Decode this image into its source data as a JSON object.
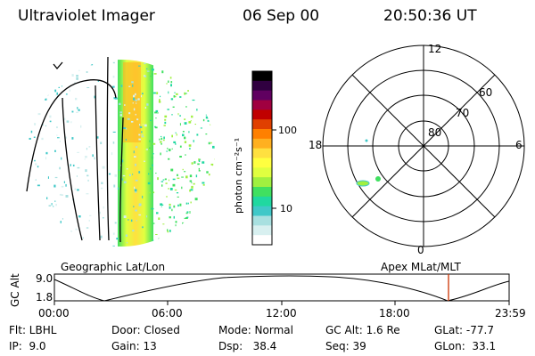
{
  "header": {
    "instrument": "Ultraviolet Imager",
    "date": "06 Sep 00",
    "time": "20:50:36 UT"
  },
  "colorbar": {
    "unit_label": "photon cm⁻²s⁻¹",
    "ticks": [
      "100",
      "10"
    ],
    "colors": [
      "#ffffff",
      "#d8f0f0",
      "#a8e0e0",
      "#40c8c8",
      "#20d8a0",
      "#40e060",
      "#a0f040",
      "#e0ff40",
      "#ffff40",
      "#ffe040",
      "#ffb020",
      "#ff8000",
      "#e04000",
      "#c00000",
      "#a00040",
      "#600060",
      "#300040",
      "#000000"
    ]
  },
  "polar_plot": {
    "mlt_labels": [
      "12",
      "18",
      "6",
      "0"
    ],
    "lat_labels": [
      "60",
      "70",
      "80"
    ]
  },
  "orbit": {
    "left_title": "Geographic Lat/Lon",
    "right_title": "Apex MLat/MLT",
    "y_axis_label": "GC Alt",
    "y_ticks": [
      "9.0",
      "1.8"
    ],
    "x_ticks": [
      "00:00",
      "06:00",
      "12:00",
      "18:00",
      "23:59"
    ],
    "marker_color": "#cc3300"
  },
  "status": {
    "row1": [
      {
        "label": "Flt: LBHL"
      },
      {
        "label": "Door: Closed"
      },
      {
        "label": "Mode: Normal"
      },
      {
        "label": "GC Alt: 1.6 Re"
      },
      {
        "label": "GLat: -77.7"
      }
    ],
    "row2": [
      {
        "label": "IP:  9.0"
      },
      {
        "label": "Gain: 13"
      },
      {
        "label": "Dsp:   38.4"
      },
      {
        "label": "Seq: 39"
      },
      {
        "label": "GLon:  33.1"
      }
    ]
  }
}
